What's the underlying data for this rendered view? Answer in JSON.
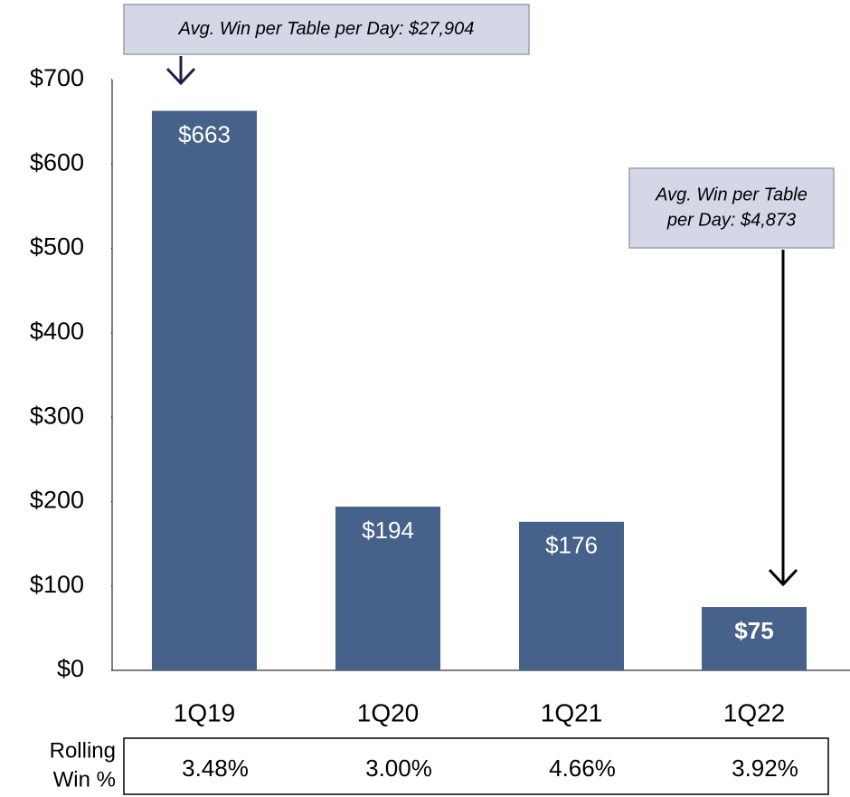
{
  "chart_data": {
    "type": "bar",
    "categories": [
      "1Q19",
      "1Q20",
      "1Q21",
      "1Q22"
    ],
    "values": [
      663,
      194,
      176,
      75
    ],
    "value_labels": [
      "$663",
      "$194",
      "$176",
      "$75"
    ],
    "color": "#46618a",
    "ylim": [
      0,
      700
    ],
    "yticks": [
      {
        "value": 0,
        "label": "$0"
      },
      {
        "value": 100,
        "label": "$100"
      },
      {
        "value": 200,
        "label": "$200"
      },
      {
        "value": 300,
        "label": "$300"
      },
      {
        "value": 400,
        "label": "$400"
      },
      {
        "value": 500,
        "label": "$500"
      },
      {
        "value": 600,
        "label": "$600"
      },
      {
        "value": 700,
        "label": "$700"
      }
    ],
    "annotations": [
      {
        "lines": [
          "Avg. Win per Table per Day: $27,904"
        ]
      },
      {
        "lines": [
          "Avg. Win per Table",
          "per Day: $4,873"
        ]
      }
    ],
    "rolling_win": {
      "label": [
        "Rolling",
        "Win %"
      ],
      "values": [
        3.48,
        3.0,
        4.66,
        3.92
      ],
      "value_labels": [
        "3.48%",
        "3.00%",
        "4.66%",
        "3.92%"
      ]
    }
  }
}
